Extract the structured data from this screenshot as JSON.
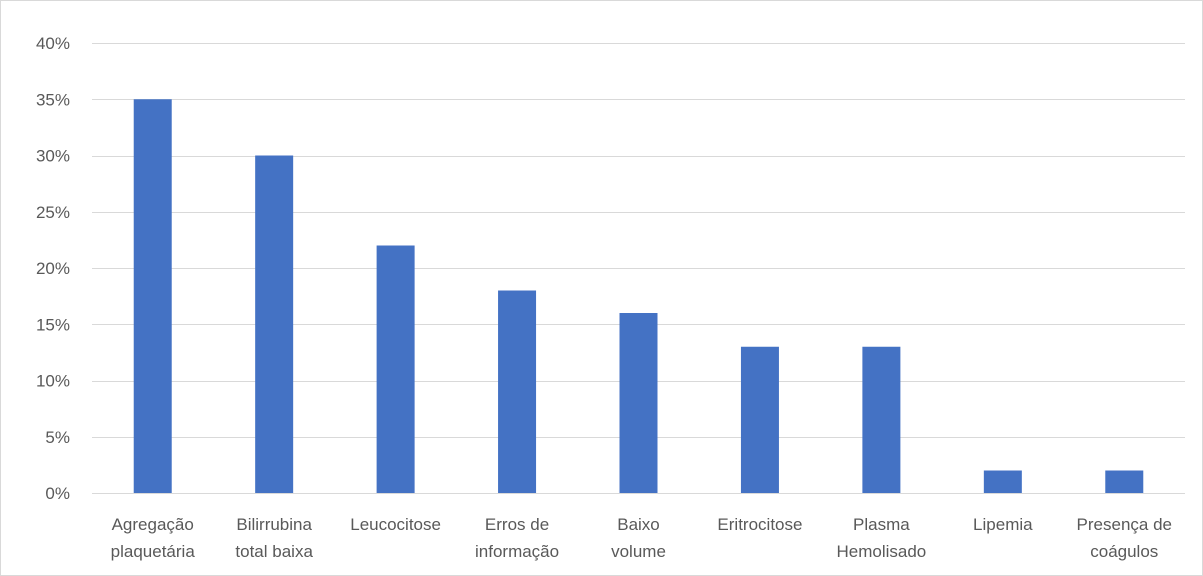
{
  "chart_data": {
    "type": "bar",
    "title": "",
    "xlabel": "",
    "ylabel": "",
    "categories": [
      [
        "Agregação",
        "plaquetária"
      ],
      [
        "Bilirrubina",
        "total baixa"
      ],
      [
        "Leucocitose"
      ],
      [
        "Erros de",
        "informação"
      ],
      [
        "Baixo",
        "volume"
      ],
      [
        "Eritrocitose"
      ],
      [
        "Plasma",
        "Hemolisado"
      ],
      [
        "Lipemia"
      ],
      [
        "Presença de",
        "coágulos"
      ]
    ],
    "values": [
      35,
      30,
      22,
      18,
      16,
      13,
      13,
      2,
      2
    ],
    "value_format": "percent",
    "ylim": [
      0,
      40
    ],
    "yticks": [
      0,
      5,
      10,
      15,
      20,
      25,
      30,
      35,
      40
    ],
    "ytick_labels": [
      "0%",
      "5%",
      "10%",
      "15%",
      "20%",
      "25%",
      "30%",
      "35%",
      "40%"
    ],
    "grid": true,
    "legend": "none",
    "colors": {
      "bar": "#4472c4",
      "grid": "#d9d9d9",
      "text": "#595959",
      "border": "#d9d9d9"
    }
  }
}
